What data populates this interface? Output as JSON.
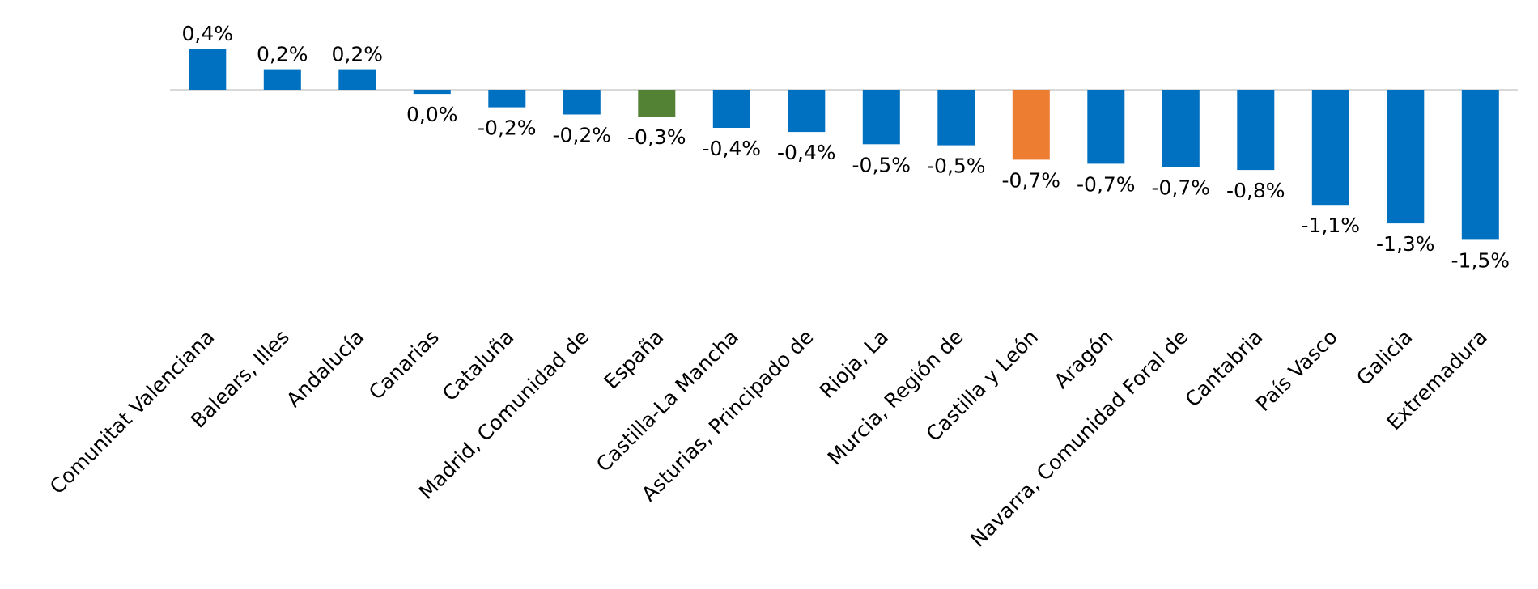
{
  "chart_data": {
    "type": "bar",
    "title": "",
    "xlabel": "",
    "ylabel": "",
    "ylim": [
      -1.6,
      0.45
    ],
    "grid": false,
    "legend": "none",
    "categories": [
      "Comunitat Valenciana",
      "Balears, Illes",
      "Andalucía",
      "Canarias",
      "Cataluña",
      "Madrid, Comunidad de",
      "España",
      "Castilla-La Mancha",
      "Asturias, Principado de",
      "Rioja, La",
      "Murcia, Región de",
      "Castilla y León",
      "Aragón",
      "Navarra, Comunidad Foral de",
      "Cantabria",
      "País Vasco",
      "Galicia",
      "Extremadura"
    ],
    "values": [
      0.4,
      0.2,
      0.2,
      -0.04,
      -0.17,
      -0.24,
      -0.26,
      -0.37,
      -0.41,
      -0.53,
      -0.54,
      -0.68,
      -0.72,
      -0.75,
      -0.78,
      -1.12,
      -1.3,
      -1.46
    ],
    "data_labels": [
      "0,4%",
      "0,2%",
      "0,2%",
      "0,0%",
      "-0,2%",
      "-0,2%",
      "-0,3%",
      "-0,4%",
      "-0,4%",
      "-0,5%",
      "-0,5%",
      "-0,7%",
      "-0,7%",
      "-0,7%",
      "-0,8%",
      "-1,1%",
      "-1,3%",
      "-1,5%"
    ],
    "bar_colors": [
      "#0070C0",
      "#0070C0",
      "#0070C0",
      "#0070C0",
      "#0070C0",
      "#0070C0",
      "#548235",
      "#0070C0",
      "#0070C0",
      "#0070C0",
      "#0070C0",
      "#ED7D31",
      "#0070C0",
      "#0070C0",
      "#0070C0",
      "#0070C0",
      "#0070C0",
      "#0070C0"
    ],
    "axis_color": "#D9D9D9"
  }
}
